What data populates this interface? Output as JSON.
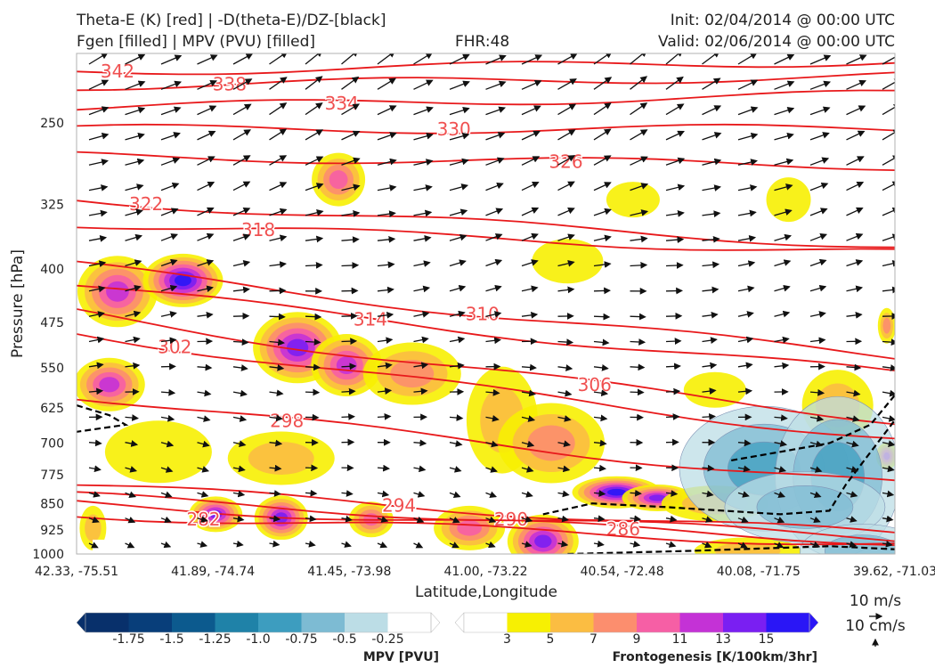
{
  "header": {
    "line1_left": "Theta-E (K) [red] | -D(theta-E)/DZ-[black]",
    "line2_left": "Fgen [filled] | MPV (PVU) [filled]",
    "fhr": "FHR:48",
    "line1_right": "Init: 02/04/2014 @ 00:00 UTC",
    "line2_right": "Valid: 02/06/2014 @ 00:00 UTC"
  },
  "chart_data": {
    "type": "cross-section",
    "title": "",
    "xlabel": "Latitude,Longitude",
    "ylabel": "Pressure [hPa]",
    "x_ticks": [
      "42.33, -75.51",
      "41.89, -74.74",
      "41.45, -73.98",
      "41.00, -73.22",
      "40.54, -72.48",
      "40.08, -71.75",
      "39.62, -71.03"
    ],
    "y_ticks": [
      250,
      325,
      400,
      475,
      550,
      625,
      700,
      775,
      850,
      925,
      1000
    ],
    "ylim": [
      1000,
      200
    ],
    "y_scale": "log-pressure",
    "theta_e_contours": [
      {
        "level": 342,
        "label": "342",
        "y_left": 212,
        "y_right": 205
      },
      {
        "level": 338,
        "label": "338",
        "y_left": 222,
        "y_right": 215
      },
      {
        "level": 334,
        "label": "334",
        "y_left": 238,
        "y_right": 228
      },
      {
        "level": 330,
        "label": "330",
        "y_left": 255,
        "y_right": 255
      },
      {
        "level": 326,
        "label": "326",
        "y_left": 278,
        "y_right": 287
      },
      {
        "level": 322,
        "label": "322",
        "y_left": 320,
        "y_right": 372
      },
      {
        "level": 318,
        "label": "318",
        "y_left": 345,
        "y_right": 380
      },
      {
        "level": 314,
        "label": "314",
        "y_left": 420,
        "y_right": 560
      },
      {
        "level": 310,
        "label": "310",
        "y_left": 395,
        "y_right": 530
      },
      {
        "level": 306,
        "label": "306",
        "y_left": 460,
        "y_right": 650
      },
      {
        "level": 302,
        "label": "302",
        "y_left": 490,
        "y_right": 690
      },
      {
        "level": 298,
        "label": "298",
        "y_left": 600,
        "y_right": 800
      },
      {
        "level": 294,
        "label": "294",
        "y_left": 800,
        "y_right": 940
      },
      {
        "level": 290,
        "label": "290",
        "y_left": 830,
        "y_right": 950
      },
      {
        "level": 286,
        "label": "286",
        "y_left": 850,
        "y_right": 960
      },
      {
        "level": 282,
        "label": "282",
        "y_left": 880,
        "y_right": 970
      }
    ],
    "mpv_colorbar": {
      "label": "MPV [PVU]",
      "levels": [
        -1.75,
        -1.5,
        -1.25,
        -1.0,
        -0.75,
        -0.5,
        -0.25
      ],
      "tick_labels": [
        "-1.75",
        "-1.5",
        "-1.25",
        "-1.0",
        "-0.75",
        "-0.5",
        "-0.25"
      ],
      "colors": [
        "#08306b",
        "#083e7a",
        "#0c5a8e",
        "#1f82a8",
        "#3d9dbf",
        "#7dbbd3",
        "#bcdde6",
        "#ffffff"
      ]
    },
    "fgen_colorbar": {
      "label": "Frontogenesis [K/100km/3hr]",
      "levels": [
        3,
        5,
        7,
        9,
        11,
        13,
        15
      ],
      "tick_labels": [
        "3",
        "5",
        "7",
        "9",
        "11",
        "13",
        "15"
      ],
      "colors": [
        "#ffffff",
        "#f7f002",
        "#fbbd42",
        "#fc8e6e",
        "#f65fa5",
        "#c432d6",
        "#7a1ff2",
        "#2a16f6"
      ]
    },
    "wind_reference": {
      "horizontal": "10 m/s",
      "vertical": "10 cm/s"
    }
  }
}
